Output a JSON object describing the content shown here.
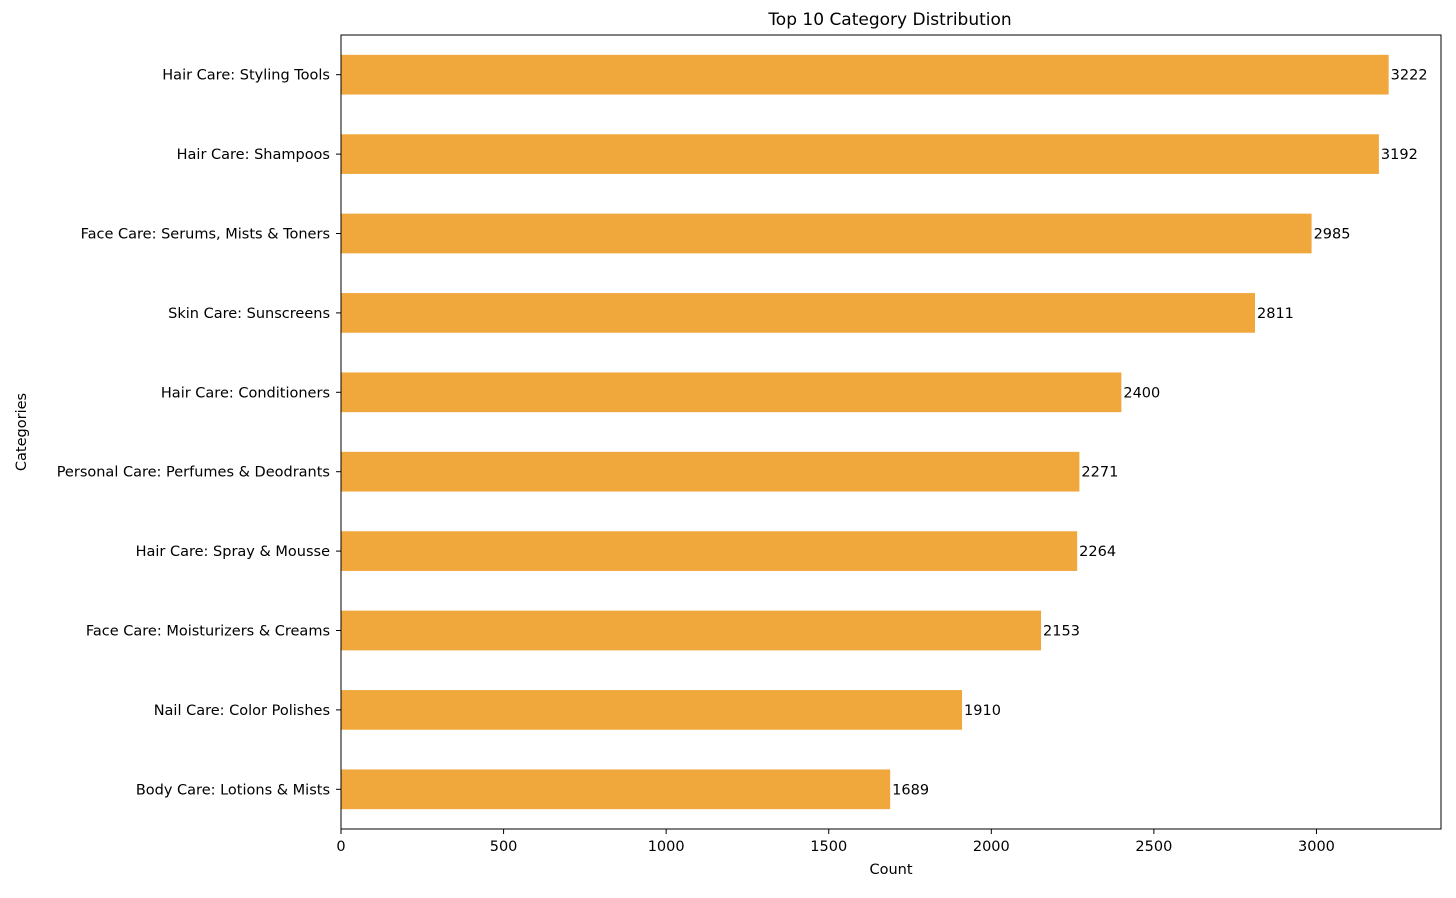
{
  "chart_data": {
    "type": "bar",
    "orientation": "horizontal",
    "title": "Top 10 Category Distribution",
    "xlabel": "Count",
    "ylabel": "Categories",
    "categories": [
      "Hair Care: Styling Tools",
      "Hair Care: Shampoos",
      "Face Care: Serums, Mists & Toners",
      "Skin Care: Sunscreens",
      "Hair Care: Conditioners",
      "Personal Care: Perfumes & Deodrants",
      "Hair Care: Spray & Mousse",
      "Face Care: Moisturizers & Creams ",
      "Nail Care: Color Polishes ",
      "Body Care: Lotions & Mists"
    ],
    "values": [
      3222,
      3192,
      2985,
      2811,
      2400,
      2271,
      2264,
      2153,
      1910,
      1689
    ],
    "xlim": [
      0,
      3383
    ],
    "xticks": [
      0,
      500,
      1000,
      1500,
      2000,
      2500,
      3000
    ],
    "grid": false,
    "legend": "none",
    "bar_color": "#f0a83c",
    "data_labels": true
  }
}
